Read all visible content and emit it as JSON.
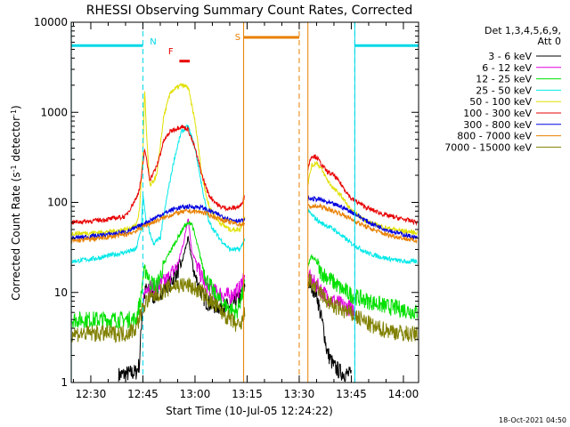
{
  "chart_data": {
    "type": "line",
    "title": "RHESSI Observing Summary Count Rates, Corrected",
    "xlabel": "Start Time (10-Jul-05 12:24:22)",
    "ylabel_main": "Corrected Count Rate (s",
    "ylabel_sup1": "-1",
    "ylabel_mid": " detector",
    "ylabel_sup2": "-1",
    "ylabel_end": ")",
    "yscale": "log",
    "ylim": [
      1,
      10000
    ],
    "xlim_minutes": [
      744.37,
      844.37
    ],
    "x_ticks": [
      {
        "minute": 750,
        "label": "12:30"
      },
      {
        "minute": 765,
        "label": "12:45"
      },
      {
        "minute": 780,
        "label": "13:00"
      },
      {
        "minute": 795,
        "label": "13:15"
      },
      {
        "minute": 810,
        "label": "13:30"
      },
      {
        "minute": 825,
        "label": "13:45"
      },
      {
        "minute": 840,
        "label": "14:00"
      }
    ],
    "y_ticks": [
      {
        "value": 1,
        "label": "1"
      },
      {
        "value": 10,
        "label": "10"
      },
      {
        "value": 100,
        "label": "100"
      },
      {
        "value": 1000,
        "label": "1000"
      },
      {
        "value": 10000,
        "label": "10000"
      }
    ],
    "legend_title_1": "Det 1,3,4,5,6,9,",
    "legend_title_2": "Att 0",
    "legend_position": "right",
    "timestamp": "18-Oct-2021 04:50",
    "flags": [
      {
        "label": "N",
        "color": "#00d8e8",
        "kind": "night"
      },
      {
        "label": "F",
        "color": "#e80000",
        "kind": "flare"
      },
      {
        "label": "S",
        "color": "#e88000",
        "kind": "saa"
      }
    ],
    "night_segments_minutes": [
      [
        744.37,
        765.0
      ],
      [
        826.0,
        844.37
      ]
    ],
    "flare_segment_minutes": [
      775.5,
      778.5
    ],
    "saa_segment_minutes": [
      794.0,
      810.0
    ],
    "night_dashes_minutes": [
      765.0,
      826.0
    ],
    "saa_dashes_minutes": [
      810.0
    ],
    "night_solids_minutes": [
      744.4,
      826.0
    ],
    "saa_solids_minutes": [
      794.0,
      812.5
    ],
    "gap_minutes": [
      794.5,
      812.5
    ],
    "series": [
      {
        "name": "3 - 6 keV",
        "color": "#000000",
        "points": [
          [
            758,
            1.2
          ],
          [
            763,
            1.3
          ],
          [
            764,
            1.6
          ],
          [
            764.5,
            4
          ],
          [
            765,
            8
          ],
          [
            766,
            11
          ],
          [
            768,
            9
          ],
          [
            770,
            10
          ],
          [
            773,
            13
          ],
          [
            776,
            20
          ],
          [
            778,
            40
          ],
          [
            780,
            15
          ],
          [
            783,
            8
          ],
          [
            786,
            7
          ],
          [
            790,
            7
          ],
          [
            793,
            9
          ],
          [
            794.4,
            12
          ],
          [
            812.5,
            13
          ],
          [
            815,
            10
          ],
          [
            816,
            6
          ],
          [
            817,
            4
          ],
          [
            818,
            2.2
          ],
          [
            820,
            1.5
          ],
          [
            822,
            1.3
          ],
          [
            825,
            1.2
          ]
        ]
      },
      {
        "name": "6 - 12 keV",
        "color": "#e000e0",
        "points": [
          [
            765,
            8
          ],
          [
            766,
            12
          ],
          [
            768,
            11
          ],
          [
            770,
            12
          ],
          [
            772,
            14
          ],
          [
            775,
            20
          ],
          [
            777,
            40
          ],
          [
            778,
            70
          ],
          [
            779,
            30
          ],
          [
            781,
            18
          ],
          [
            783,
            12
          ],
          [
            786,
            10
          ],
          [
            790,
            9
          ],
          [
            793,
            11
          ],
          [
            794.4,
            17
          ],
          [
            812.5,
            15
          ],
          [
            814,
            13
          ],
          [
            816,
            11
          ],
          [
            818,
            9
          ],
          [
            820,
            8
          ],
          [
            823,
            7
          ],
          [
            826,
            6.5
          ]
        ]
      },
      {
        "name": "12 - 25 keV",
        "color": "#00e000",
        "points": [
          [
            744.4,
            5
          ],
          [
            750,
            5
          ],
          [
            755,
            5
          ],
          [
            760,
            5
          ],
          [
            763,
            5
          ],
          [
            764.5,
            9
          ],
          [
            765,
            15
          ],
          [
            766,
            18
          ],
          [
            767,
            13
          ],
          [
            769,
            12
          ],
          [
            772,
            25
          ],
          [
            775,
            40
          ],
          [
            777,
            55
          ],
          [
            779,
            60
          ],
          [
            781,
            30
          ],
          [
            783,
            15
          ],
          [
            786,
            9
          ],
          [
            789,
            7
          ],
          [
            792,
            6
          ],
          [
            794.4,
            12
          ],
          [
            812.5,
            20
          ],
          [
            813.5,
            25
          ],
          [
            815,
            22
          ],
          [
            816,
            17
          ],
          [
            818,
            15
          ],
          [
            822,
            11
          ],
          [
            826,
            9
          ],
          [
            830,
            8
          ],
          [
            835,
            7
          ],
          [
            840,
            6.5
          ],
          [
            844,
            6
          ]
        ]
      },
      {
        "name": "25 - 50 keV",
        "color": "#00e8e8",
        "points": [
          [
            744.4,
            22
          ],
          [
            748,
            23
          ],
          [
            752,
            24
          ],
          [
            756,
            26
          ],
          [
            760,
            28
          ],
          [
            763,
            30
          ],
          [
            764.5,
            50
          ],
          [
            765,
            120
          ],
          [
            766,
            60
          ],
          [
            768,
            35
          ],
          [
            770,
            40
          ],
          [
            772,
            120
          ],
          [
            774,
            300
          ],
          [
            776,
            600
          ],
          [
            778,
            700
          ],
          [
            780,
            400
          ],
          [
            782,
            150
          ],
          [
            784,
            60
          ],
          [
            787,
            40
          ],
          [
            790,
            30
          ],
          [
            793,
            30
          ],
          [
            794.4,
            40
          ],
          [
            812.5,
            80
          ],
          [
            814,
            70
          ],
          [
            816,
            60
          ],
          [
            818,
            55
          ],
          [
            820,
            50
          ],
          [
            825,
            35
          ],
          [
            830,
            27
          ],
          [
            835,
            24
          ],
          [
            840,
            22
          ],
          [
            844,
            22
          ]
        ]
      },
      {
        "name": "50 - 100 keV",
        "color": "#e0e000",
        "points": [
          [
            744.4,
            45
          ],
          [
            750,
            46
          ],
          [
            755,
            47
          ],
          [
            760,
            50
          ],
          [
            763,
            55
          ],
          [
            764,
            80
          ],
          [
            765,
            350
          ],
          [
            765.5,
            1800
          ],
          [
            766,
            600
          ],
          [
            767,
            150
          ],
          [
            769,
            200
          ],
          [
            771,
            900
          ],
          [
            773,
            1700
          ],
          [
            776,
            2000
          ],
          [
            778,
            1900
          ],
          [
            780,
            800
          ],
          [
            782,
            200
          ],
          [
            784,
            90
          ],
          [
            787,
            60
          ],
          [
            790,
            50
          ],
          [
            793,
            50
          ],
          [
            794.4,
            70
          ],
          [
            812.5,
            160
          ],
          [
            813.5,
            250
          ],
          [
            815,
            280
          ],
          [
            816.5,
            230
          ],
          [
            818,
            180
          ],
          [
            820,
            140
          ],
          [
            822,
            120
          ],
          [
            825,
            80
          ],
          [
            830,
            60
          ],
          [
            835,
            52
          ],
          [
            840,
            48
          ],
          [
            844,
            46
          ]
        ]
      },
      {
        "name": "100 - 300 keV",
        "color": "#e80000",
        "points": [
          [
            744.4,
            60
          ],
          [
            750,
            62
          ],
          [
            755,
            65
          ],
          [
            760,
            70
          ],
          [
            763,
            110
          ],
          [
            764,
            140
          ],
          [
            765,
            250
          ],
          [
            765.5,
            400
          ],
          [
            766,
            300
          ],
          [
            767,
            180
          ],
          [
            769,
            250
          ],
          [
            771,
            480
          ],
          [
            773,
            620
          ],
          [
            776,
            700
          ],
          [
            778,
            650
          ],
          [
            780,
            400
          ],
          [
            782,
            200
          ],
          [
            784,
            120
          ],
          [
            787,
            90
          ],
          [
            790,
            85
          ],
          [
            793,
            90
          ],
          [
            794.4,
            120
          ],
          [
            812.5,
            240
          ],
          [
            813.5,
            330
          ],
          [
            815,
            320
          ],
          [
            816.5,
            260
          ],
          [
            818,
            220
          ],
          [
            820,
            200
          ],
          [
            822,
            160
          ],
          [
            825,
            110
          ],
          [
            830,
            85
          ],
          [
            835,
            72
          ],
          [
            840,
            65
          ],
          [
            844,
            60
          ]
        ]
      },
      {
        "name": "300 - 800 keV",
        "color": "#0000e0",
        "points": [
          [
            744.4,
            40
          ],
          [
            750,
            42
          ],
          [
            755,
            44
          ],
          [
            760,
            47
          ],
          [
            763,
            52
          ],
          [
            766,
            60
          ],
          [
            770,
            72
          ],
          [
            774,
            85
          ],
          [
            778,
            90
          ],
          [
            782,
            88
          ],
          [
            786,
            75
          ],
          [
            790,
            65
          ],
          [
            793,
            62
          ],
          [
            794.4,
            63
          ],
          [
            812.5,
            110
          ],
          [
            816,
            108
          ],
          [
            818,
            100
          ],
          [
            822,
            90
          ],
          [
            826,
            75
          ],
          [
            830,
            60
          ],
          [
            835,
            50
          ],
          [
            840,
            44
          ],
          [
            844,
            40
          ]
        ]
      },
      {
        "name": "800 - 7000 keV",
        "color": "#e88000",
        "points": [
          [
            744.4,
            37
          ],
          [
            750,
            39
          ],
          [
            755,
            41
          ],
          [
            760,
            44
          ],
          [
            763,
            48
          ],
          [
            766,
            56
          ],
          [
            770,
            65
          ],
          [
            774,
            75
          ],
          [
            778,
            80
          ],
          [
            782,
            78
          ],
          [
            786,
            68
          ],
          [
            790,
            60
          ],
          [
            793,
            57
          ],
          [
            794.4,
            58
          ],
          [
            812.5,
            90
          ],
          [
            816,
            90
          ],
          [
            818,
            85
          ],
          [
            822,
            75
          ],
          [
            826,
            62
          ],
          [
            830,
            52
          ],
          [
            835,
            44
          ],
          [
            840,
            40
          ],
          [
            844,
            37
          ]
        ]
      },
      {
        "name": "7000 - 15000 keV",
        "color": "#808000",
        "points": [
          [
            744.4,
            3.5
          ],
          [
            750,
            3.5
          ],
          [
            755,
            3.5
          ],
          [
            760,
            3.5
          ],
          [
            763,
            4
          ],
          [
            764.5,
            6
          ],
          [
            766,
            8
          ],
          [
            768,
            9
          ],
          [
            770,
            10
          ],
          [
            774,
            12
          ],
          [
            778,
            12
          ],
          [
            782,
            10
          ],
          [
            786,
            7
          ],
          [
            790,
            5
          ],
          [
            793,
            4
          ],
          [
            794.4,
            6
          ],
          [
            812.5,
            14
          ],
          [
            814,
            12
          ],
          [
            816,
            10
          ],
          [
            818,
            8
          ],
          [
            820,
            7
          ],
          [
            824,
            6
          ],
          [
            828,
            5
          ],
          [
            832,
            4
          ],
          [
            836,
            3.8
          ],
          [
            840,
            3.5
          ],
          [
            844,
            3.4
          ]
        ]
      }
    ]
  }
}
